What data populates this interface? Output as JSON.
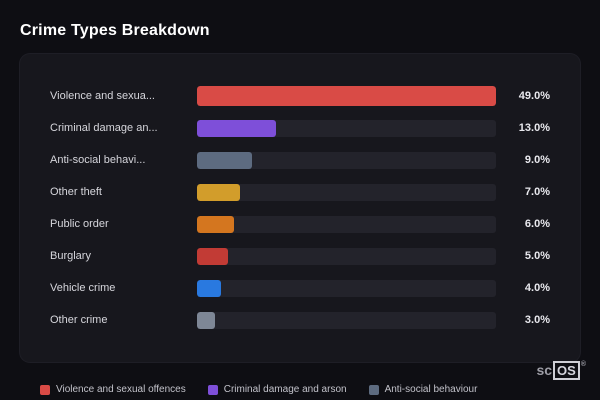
{
  "page": {
    "title": "Crime Types Breakdown"
  },
  "chart_data": {
    "type": "bar",
    "orientation": "horizontal",
    "title": "Crime Types Breakdown",
    "categories": [
      "Violence and sexua...",
      "Criminal damage an...",
      "Anti-social behavi...",
      "Other theft",
      "Public order",
      "Burglary",
      "Vehicle crime",
      "Other crime"
    ],
    "values": [
      49.0,
      13.0,
      9.0,
      7.0,
      6.0,
      5.0,
      4.0,
      3.0
    ],
    "value_labels": [
      "49.0%",
      "13.0%",
      "9.0%",
      "7.0%",
      "6.0%",
      "5.0%",
      "4.0%",
      "3.0%"
    ],
    "bar_colors": [
      "#d94b46",
      "#7e4fd9",
      "#5d6b80",
      "#d29d2b",
      "#d4761f",
      "#c23b35",
      "#2979e0",
      "#7e8796"
    ],
    "xlim": [
      0,
      49
    ],
    "grid": false,
    "legend_position": "bottom",
    "legend": [
      {
        "label": "Violence and sexual offences",
        "color": "#d94b46"
      },
      {
        "label": "Criminal damage and arson",
        "color": "#7e4fd9"
      },
      {
        "label": "Anti-social behaviour",
        "color": "#5d6b80"
      }
    ]
  },
  "branding": {
    "logo_prefix": "sc",
    "logo_suffix": "OS",
    "registered_mark": "®"
  }
}
